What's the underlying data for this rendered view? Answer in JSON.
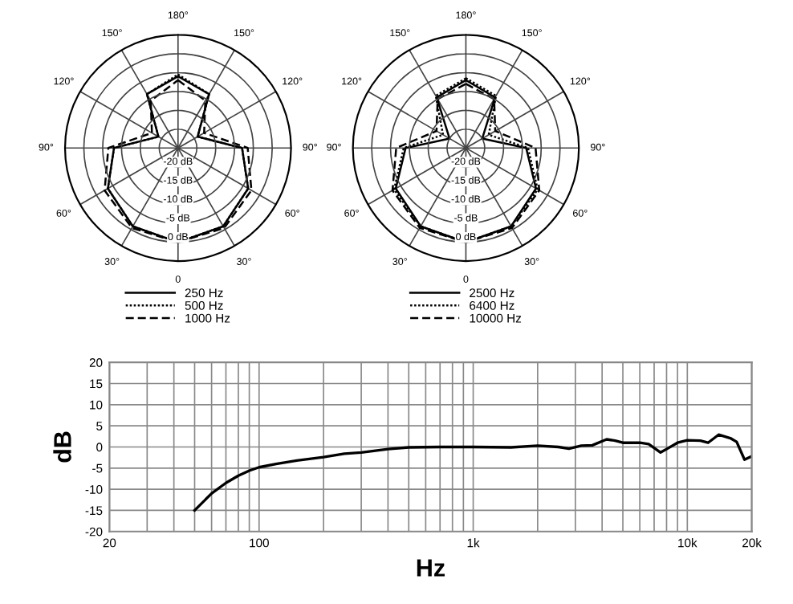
{
  "chart_data": [
    {
      "type": "radar",
      "categories": [
        "180°",
        "150°",
        "120°",
        "90°",
        "60°",
        "30°",
        "0",
        "30°",
        "60°",
        "90°",
        "120°",
        "150°"
      ],
      "ylim": [
        -25,
        5
      ],
      "yticks": [
        {
          "value": -20,
          "label": "-20 dB"
        },
        {
          "value": -15,
          "label": "-15 dB"
        },
        {
          "value": -10,
          "label": "-10 dB"
        },
        {
          "value": -5,
          "label": "-5 dB"
        },
        {
          "value": 0,
          "label": "0 dB"
        }
      ],
      "grid": true,
      "legend": "bottom",
      "series": [
        {
          "name": "250 Hz",
          "color": "#000000",
          "line_style": "solid",
          "values": [
            -6,
            -8.5,
            -19,
            -8,
            -3.5,
            -1,
            0,
            -1,
            -3.5,
            -8,
            -19,
            -8.5
          ]
        },
        {
          "name": "500 Hz",
          "color": "#000000",
          "line_style": "dotted",
          "values": [
            -5.5,
            -8.5,
            -19,
            -8,
            -3.5,
            -1,
            0,
            -1,
            -3.5,
            -8,
            -19,
            -8.5
          ]
        },
        {
          "name": "1000 Hz",
          "color": "#000000",
          "line_style": "dashed",
          "values": [
            -7,
            -10.5,
            -17,
            -6.5,
            -2.5,
            -0.5,
            0,
            -0.5,
            -2.5,
            -6.5,
            -17,
            -10.5
          ]
        }
      ]
    },
    {
      "type": "radar",
      "categories": [
        "180°",
        "150°",
        "120°",
        "90°",
        "60°",
        "30°",
        "0",
        "30°",
        "60°",
        "90°",
        "120°",
        "150°"
      ],
      "ylim": [
        -25,
        5
      ],
      "yticks": [
        {
          "value": -20,
          "label": "-20 dB"
        },
        {
          "value": -15,
          "label": "-15 dB"
        },
        {
          "value": -10,
          "label": "-10 dB"
        },
        {
          "value": -5,
          "label": "-5 dB"
        },
        {
          "value": 0,
          "label": "0 dB"
        }
      ],
      "grid": true,
      "legend": "bottom",
      "series": [
        {
          "name": "2500 Hz",
          "color": "#000000",
          "line_style": "solid",
          "values": [
            -7,
            -9.5,
            -20,
            -9,
            -3.5,
            -1,
            0,
            -1,
            -3.5,
            -9,
            -20,
            -9.5
          ]
        },
        {
          "name": "6400 Hz",
          "color": "#000000",
          "line_style": "dotted",
          "values": [
            -6.5,
            -9,
            -18,
            -8.5,
            -3,
            -1,
            0,
            -1,
            -3,
            -8.5,
            -18,
            -9
          ]
        },
        {
          "name": "10000 Hz",
          "color": "#000000",
          "line_style": "dashed",
          "values": [
            -8,
            -10,
            -16,
            -6.5,
            -2.5,
            -0.5,
            0,
            -0.5,
            -2.5,
            -6.5,
            -16,
            -10
          ]
        }
      ]
    },
    {
      "type": "line",
      "xlabel": "Hz",
      "ylabel": "dB",
      "log": "x",
      "xlim": [
        20,
        20000
      ],
      "ylim": [
        -20,
        20
      ],
      "xticks": [
        20,
        {
          "value": 30,
          "label": null
        },
        {
          "value": 40,
          "label": null
        },
        {
          "value": 50,
          "label": null
        },
        {
          "value": 60,
          "label": null
        },
        {
          "value": 70,
          "label": null
        },
        {
          "value": 80,
          "label": null
        },
        {
          "value": 90,
          "label": null
        },
        100,
        {
          "value": 200,
          "label": null
        },
        {
          "value": 300,
          "label": null
        },
        {
          "value": 400,
          "label": null
        },
        {
          "value": 500,
          "label": null
        },
        {
          "value": 600,
          "label": null
        },
        {
          "value": 700,
          "label": null
        },
        {
          "value": 800,
          "label": null
        },
        {
          "value": 900,
          "label": null
        },
        {
          "value": 1000,
          "label": "1k"
        },
        {
          "value": 2000,
          "label": null
        },
        {
          "value": 3000,
          "label": null
        },
        {
          "value": 4000,
          "label": null
        },
        {
          "value": 5000,
          "label": null
        },
        {
          "value": 6000,
          "label": null
        },
        {
          "value": 7000,
          "label": null
        },
        {
          "value": 8000,
          "label": null
        },
        {
          "value": 9000,
          "label": null
        },
        {
          "value": 10000,
          "label": "10k"
        },
        {
          "value": 20000,
          "label": "20k"
        }
      ],
      "yticks": [
        -20,
        -15,
        -10,
        -5,
        0,
        5,
        10,
        15,
        20
      ],
      "grid": true,
      "x": [
        50,
        60,
        70,
        80,
        90,
        100,
        120,
        150,
        200,
        250,
        300,
        400,
        500,
        700,
        1000,
        1500,
        2000,
        2500,
        2800,
        3200,
        3600,
        4200,
        4600,
        5000,
        6000,
        6600,
        7500,
        8000,
        9000,
        10000,
        11500,
        12500,
        14000,
        16000,
        17000,
        18500,
        20000
      ],
      "series": [
        {
          "color": "#000000",
          "values": [
            -15,
            -11,
            -8.5,
            -6.8,
            -5.6,
            -4.8,
            -4,
            -3.2,
            -2.4,
            -1.6,
            -1.3,
            -0.5,
            -0.1,
            0,
            0,
            -0.1,
            0.3,
            0,
            -0.4,
            0.3,
            0.4,
            1.8,
            1.5,
            1,
            1,
            0.7,
            -1.3,
            -0.5,
            1,
            1.6,
            1.5,
            1,
            2.9,
            2,
            1.2,
            -3,
            -2.2
          ]
        }
      ]
    }
  ]
}
